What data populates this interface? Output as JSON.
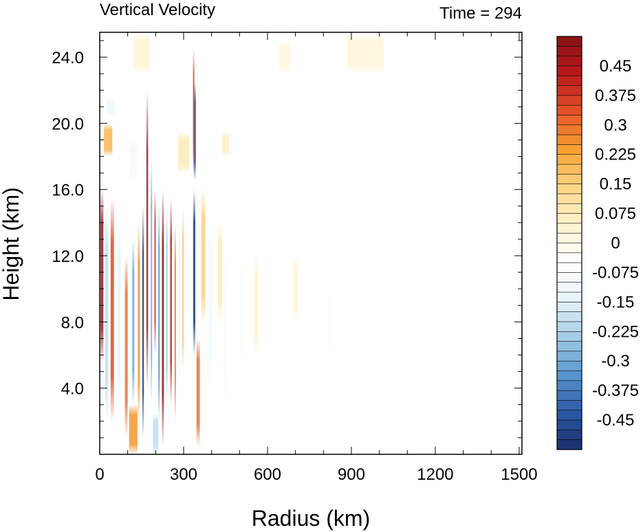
{
  "chart_data": {
    "type": "heatmap",
    "title": "Vertical Velocity",
    "subtitle": "Time = 294",
    "xlabel": "Radius (km)",
    "ylabel": "Height (km)",
    "xlim": [
      0,
      1510
    ],
    "ylim": [
      0,
      25.5
    ],
    "x_ticks": [
      0,
      300,
      600,
      900,
      1200,
      1500
    ],
    "x_tick_labels": [
      "0",
      "300",
      "600",
      "900",
      "1200",
      "1500"
    ],
    "y_ticks": [
      4,
      8,
      12,
      16,
      20,
      24
    ],
    "y_tick_labels": [
      "4.0",
      "8.0",
      "12.0",
      "16.0",
      "20.0",
      "24.0"
    ],
    "colorbar": {
      "min": -0.525,
      "max": 0.525,
      "step": 0.025,
      "label_values": [
        0.45,
        0.375,
        0.3,
        0.225,
        0.15,
        0.075,
        0,
        -0.075,
        -0.15,
        -0.225,
        -0.3,
        -0.375,
        -0.45
      ],
      "label_texts": [
        "0.45",
        "0.375",
        "0.3",
        "0.225",
        "0.15",
        "0.075",
        "0",
        "-0.075",
        "-0.15",
        "-0.225",
        "-0.3",
        "-0.375",
        "-0.45"
      ],
      "colormap": [
        "#1a2f6b",
        "#2c58a6",
        "#5996cf",
        "#a4cde6",
        "#e9f4fa",
        "#ffffff",
        "#fff4cf",
        "#fdd585",
        "#f7a032",
        "#e4542a",
        "#b8191d",
        "#861313"
      ]
    },
    "features": [
      {
        "type": "column",
        "r": 8,
        "w": 10,
        "z0": 5.5,
        "z1": 16,
        "v": 0.5
      },
      {
        "type": "column",
        "r": 25,
        "w": 10,
        "z0": 2,
        "z1": 15,
        "v": -0.2
      },
      {
        "type": "column",
        "r": 45,
        "w": 12,
        "z0": 2,
        "z1": 15.5,
        "v": 0.35
      },
      {
        "type": "column",
        "r": 70,
        "w": 10,
        "z0": 3,
        "z1": 14,
        "v": -0.15
      },
      {
        "type": "column",
        "r": 95,
        "w": 10,
        "z0": 1,
        "z1": 12,
        "v": 0.3
      },
      {
        "type": "column",
        "r": 120,
        "w": 8,
        "z0": 3,
        "z1": 13,
        "v": -0.3
      },
      {
        "type": "column",
        "r": 140,
        "w": 8,
        "z0": 2,
        "z1": 14,
        "v": 0.25
      },
      {
        "type": "column",
        "r": 155,
        "w": 6,
        "z0": 1,
        "z1": 15,
        "v": -0.5
      },
      {
        "type": "column",
        "r": 170,
        "w": 6,
        "z0": 4,
        "z1": 22,
        "v": 0.5
      },
      {
        "type": "column",
        "r": 185,
        "w": 5,
        "z0": 3,
        "z1": 18,
        "v": -0.3
      },
      {
        "type": "column",
        "r": 198,
        "w": 5,
        "z0": 6,
        "z1": 16,
        "v": 0.4
      },
      {
        "type": "column",
        "r": 212,
        "w": 5,
        "z0": 2,
        "z1": 15,
        "v": -0.35
      },
      {
        "type": "column",
        "r": 226,
        "w": 7,
        "z0": 0.5,
        "z1": 16,
        "v": 0.55
      },
      {
        "type": "column",
        "r": 240,
        "w": 5,
        "z0": 3,
        "z1": 15,
        "v": -0.25
      },
      {
        "type": "column",
        "r": 255,
        "w": 6,
        "z0": 3,
        "z1": 15.5,
        "v": 0.45
      },
      {
        "type": "column",
        "r": 270,
        "w": 5,
        "z0": 2,
        "z1": 14,
        "v": 0.3
      },
      {
        "type": "column",
        "r": 285,
        "w": 4,
        "z0": 4,
        "z1": 14,
        "v": -0.15
      },
      {
        "type": "column",
        "r": 298,
        "w": 4,
        "z0": 5,
        "z1": 15,
        "v": 0.2
      },
      {
        "type": "column",
        "r": 338,
        "w": 8,
        "z0": 6,
        "z1": 16,
        "v": -0.5
      },
      {
        "type": "column",
        "r": 340,
        "w": 8,
        "z0": 16.5,
        "z1": 22.5,
        "v": -0.45
      },
      {
        "type": "column",
        "r": 336,
        "w": 5,
        "z0": 17,
        "z1": 24.5,
        "v": 0.35
      },
      {
        "type": "column",
        "r": 352,
        "w": 12,
        "z0": 0.5,
        "z1": 7,
        "v": 0.3
      },
      {
        "type": "column",
        "r": 370,
        "w": 14,
        "z0": 8,
        "z1": 16,
        "v": 0.15
      },
      {
        "type": "column",
        "r": 395,
        "w": 16,
        "z0": 4,
        "z1": 14,
        "v": -0.1
      },
      {
        "type": "column",
        "r": 430,
        "w": 14,
        "z0": 8,
        "z1": 14,
        "v": 0.08
      },
      {
        "type": "column",
        "r": 450,
        "w": 12,
        "z0": 3,
        "z1": 12,
        "v": -0.08
      },
      {
        "type": "column",
        "r": 510,
        "w": 16,
        "z0": 5,
        "z1": 12,
        "v": -0.06
      },
      {
        "type": "column",
        "r": 560,
        "w": 14,
        "z0": 6,
        "z1": 12,
        "v": 0.05
      },
      {
        "type": "column",
        "r": 700,
        "w": 16,
        "z0": 8,
        "z1": 12,
        "v": 0.04
      },
      {
        "type": "column",
        "r": 820,
        "w": 14,
        "z0": 6,
        "z1": 10,
        "v": -0.03
      },
      {
        "type": "column",
        "r": 30,
        "w": 30,
        "z0": 18,
        "z1": 20,
        "v": 0.2
      },
      {
        "type": "column",
        "r": 40,
        "w": 30,
        "z0": 20.5,
        "z1": 21.5,
        "v": -0.12
      },
      {
        "type": "column",
        "r": 120,
        "w": 25,
        "z0": 16.5,
        "z1": 19,
        "v": -0.1
      },
      {
        "type": "column",
        "r": 300,
        "w": 40,
        "z0": 17,
        "z1": 19.5,
        "v": 0.08
      },
      {
        "type": "column",
        "r": 450,
        "w": 25,
        "z0": 18,
        "z1": 19.5,
        "v": 0.06
      },
      {
        "type": "column",
        "r": 470,
        "w": 15,
        "z0": 20,
        "z1": 21.5,
        "v": -0.05
      },
      {
        "type": "column",
        "r": 150,
        "w": 60,
        "z0": 23,
        "z1": 25.5,
        "v": 0.04
      },
      {
        "type": "column",
        "r": 950,
        "w": 130,
        "z0": 23,
        "z1": 25.5,
        "v": 0.03
      },
      {
        "type": "column",
        "r": 660,
        "w": 40,
        "z0": 23,
        "z1": 25,
        "v": 0.025
      },
      {
        "type": "column",
        "r": 120,
        "w": 30,
        "z0": 0,
        "z1": 3,
        "v": 0.25
      },
      {
        "type": "column",
        "r": 200,
        "w": 20,
        "z0": 0,
        "z1": 2.5,
        "v": -0.2
      }
    ]
  }
}
